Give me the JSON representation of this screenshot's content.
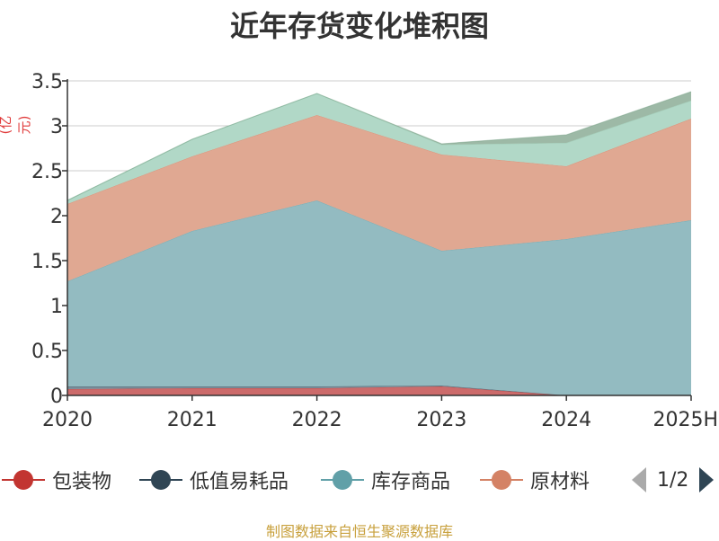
{
  "title": "近年存货变化堆积图",
  "y_unit": "(亿元)",
  "source": "制图数据来自恒生聚源数据库",
  "legend_pager": "1/2",
  "chart_data": {
    "type": "area",
    "stacked": true,
    "categories": [
      "2020",
      "2021",
      "2022",
      "2023",
      "2024",
      "2025H"
    ],
    "ylim": [
      0,
      3.5
    ],
    "yticks": [
      "0",
      "0.5",
      "1",
      "1.5",
      "2",
      "2.5",
      "3",
      "3.5"
    ],
    "grid": true,
    "series": [
      {
        "name": "包装物",
        "color": "#c23531",
        "fill": "#cc6b6b",
        "values": [
          0.07,
          0.08,
          0.08,
          0.1,
          0.0,
          0.0
        ]
      },
      {
        "name": "低值易耗品",
        "color": "#2f4554",
        "fill": "#7a8e9a",
        "values": [
          0.03,
          0.02,
          0.02,
          0.01,
          0.0,
          0.0
        ]
      },
      {
        "name": "库存商品",
        "color": "#61a0a8",
        "fill": "#93bbc1",
        "values": [
          1.17,
          1.73,
          2.07,
          1.5,
          1.74,
          1.95
        ]
      },
      {
        "name": "原材料",
        "color": "#d48265",
        "fill": "#e0a892",
        "values": [
          0.86,
          0.83,
          0.95,
          1.07,
          0.81,
          1.13
        ]
      },
      {
        "name": "",
        "color": "#91c7ae",
        "fill": "#b1d8c7",
        "values": [
          0.04,
          0.19,
          0.24,
          0.11,
          0.26,
          0.2
        ]
      },
      {
        "name": "",
        "color": "#749f83",
        "fill": "#9db9a6",
        "values": [
          0.0,
          0.0,
          0.0,
          0.01,
          0.09,
          0.1
        ]
      }
    ],
    "legend": [
      "包装物",
      "低值易耗品",
      "库存商品",
      "原材料"
    ],
    "legend_placement": "bottom"
  }
}
